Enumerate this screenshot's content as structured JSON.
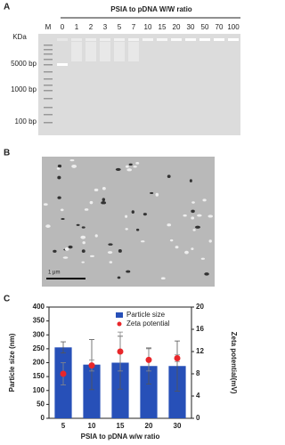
{
  "panels": {
    "a": {
      "label": "A",
      "title": "PSIA to pDNA W/W ratio",
      "unit": "KDa",
      "lanes": [
        "M",
        "0",
        "1",
        "2",
        "3",
        "5",
        "7",
        "10",
        "15",
        "20",
        "30",
        "50",
        "70",
        "100"
      ],
      "markers": [
        "5000 bp",
        "1000 bp",
        "100 bp"
      ]
    },
    "b": {
      "label": "B",
      "scale": "1 μm"
    },
    "c": {
      "label": "C"
    }
  },
  "chart_data": {
    "type": "bar",
    "categories": [
      "5",
      "10",
      "15",
      "20",
      "30"
    ],
    "xlabel": "PSIA to pDNA w/w ratio",
    "ylabel": "Particle size (nm)",
    "y2label": "Zeta potential(mV)",
    "ylim": [
      0,
      400
    ],
    "yticks": [
      0,
      50,
      100,
      150,
      200,
      250,
      300,
      350,
      400
    ],
    "y2lim": [
      0,
      20
    ],
    "y2ticks": [
      0,
      4,
      8,
      12,
      16,
      20
    ],
    "legend": "top-right",
    "series": [
      {
        "name": "Particle size",
        "color": "#2750b8",
        "values": [
          255,
          193,
          200,
          188,
          188
        ],
        "errors": [
          20,
          90,
          95,
          65,
          90
        ]
      },
      {
        "name": "Zeta potential",
        "color": "#e8262a",
        "axis": "y2",
        "values": [
          8,
          9.5,
          12,
          10.5,
          10.8
        ],
        "errors": [
          2,
          1,
          3.5,
          2,
          0.6
        ]
      }
    ]
  }
}
